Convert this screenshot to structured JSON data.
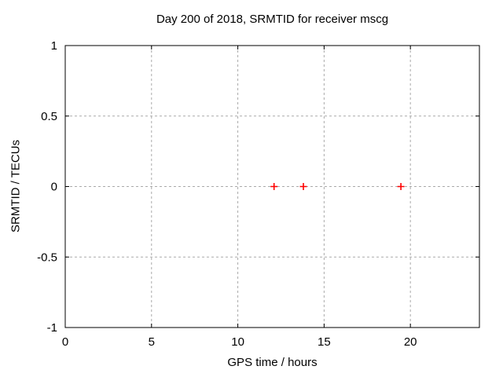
{
  "window": {
    "background": "#ffffff"
  },
  "chart_data": {
    "type": "scatter",
    "title": "Day 200 of 2018, SRMTID for receiver mscg",
    "xlabel": "GPS time / hours",
    "ylabel": "SRMTID / TECUs",
    "xlim": [
      0,
      24
    ],
    "ylim": [
      -1,
      1
    ],
    "xticks": {
      "values": [
        0,
        5,
        10,
        15,
        20
      ],
      "labels": [
        "0",
        "5",
        "10",
        "15",
        "20"
      ]
    },
    "yticks": {
      "values": [
        -1,
        -0.5,
        0,
        0.5,
        1
      ],
      "labels": [
        "-1",
        "-0.5",
        "0",
        "0.5",
        "1"
      ]
    },
    "grid": {
      "enabled": true,
      "style": "dashed",
      "color": "#aaaaaa"
    },
    "legend": "none",
    "frame_color": "#000000",
    "series": [
      {
        "name": "SRMTID",
        "marker": "plus",
        "color": "#ff0000",
        "points": [
          {
            "x": 12.1,
            "y": 0.0
          },
          {
            "x": 13.8,
            "y": 0.0
          },
          {
            "x": 19.45,
            "y": 0.0
          }
        ]
      }
    ]
  }
}
